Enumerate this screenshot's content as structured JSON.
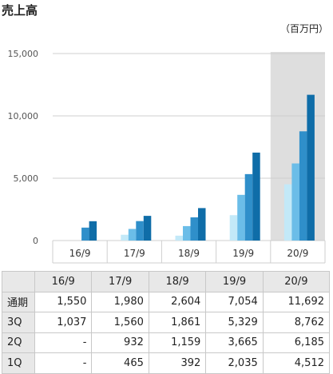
{
  "title": "売上高",
  "unit_label": "（百万円）",
  "chart_data": {
    "type": "bar",
    "categories": [
      "16/9",
      "17/9",
      "18/9",
      "19/9",
      "20/9"
    ],
    "series": [
      {
        "name": "1Q",
        "values": [
          null,
          465,
          392,
          2035,
          4512
        ]
      },
      {
        "name": "2Q",
        "values": [
          null,
          932,
          1159,
          3665,
          6185
        ]
      },
      {
        "name": "3Q",
        "values": [
          1037,
          1560,
          1861,
          5329,
          8762
        ]
      },
      {
        "name": "通期",
        "values": [
          1550,
          1980,
          2604,
          7054,
          11692
        ]
      }
    ],
    "ylim": [
      0,
      15000
    ],
    "yticks": [
      "0",
      "5,000",
      "10,000",
      "15,000"
    ],
    "ytick_values": [
      0,
      5000,
      10000,
      15000
    ],
    "highlight_category": "20/9",
    "colors": [
      "#c3e9f8",
      "#6bbde8",
      "#2f8fca",
      "#0f6da8"
    ],
    "highlight_bg": "#dedede",
    "grid": true
  },
  "table": {
    "headers": [
      "",
      "16/9",
      "17/9",
      "18/9",
      "19/9",
      "20/9"
    ],
    "rows": [
      {
        "label": "通期",
        "cells": [
          "1,550",
          "1,980",
          "2,604",
          "7,054",
          "11,692"
        ]
      },
      {
        "label": "3Q",
        "cells": [
          "1,037",
          "1,560",
          "1,861",
          "5,329",
          "8,762"
        ]
      },
      {
        "label": "2Q",
        "cells": [
          "-",
          "932",
          "1,159",
          "3,665",
          "6,185"
        ]
      },
      {
        "label": "1Q",
        "cells": [
          "-",
          "465",
          "392",
          "2,035",
          "4,512"
        ]
      }
    ]
  }
}
